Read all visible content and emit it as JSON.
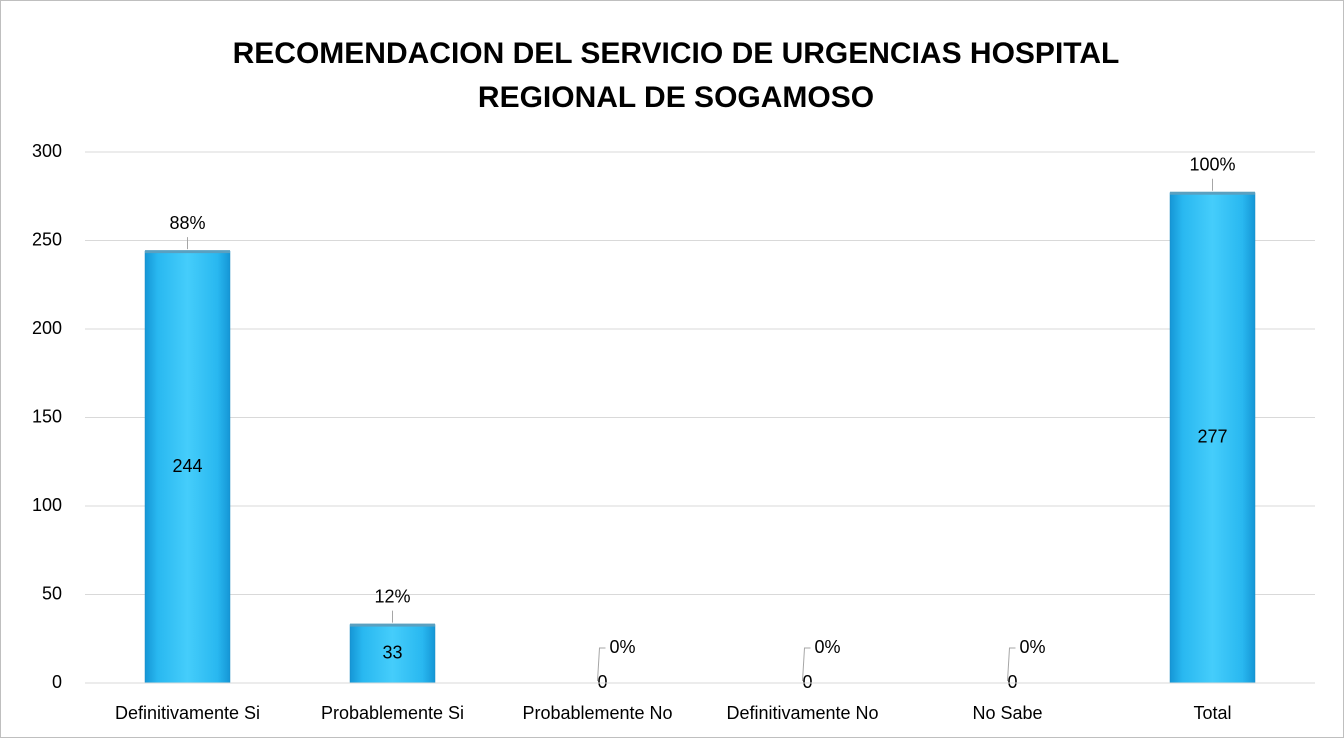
{
  "chart_data": {
    "type": "bar",
    "title": [
      "RECOMENDACION DEL SERVICIO DE URGENCIAS HOSPITAL",
      "REGIONAL DE SOGAMOSO"
    ],
    "categories": [
      "Definitivamente Si",
      "Probablemente Si",
      "Probablemente No",
      "Definitivamente No",
      "No Sabe",
      "Total"
    ],
    "values": [
      244,
      33,
      0,
      0,
      0,
      277
    ],
    "percent_labels": [
      "88%",
      "12%",
      "0%",
      "0%",
      "0%",
      "100%"
    ],
    "color": "#29b8f0",
    "ylim": [
      0,
      300
    ],
    "yticks": [
      0,
      50,
      100,
      150,
      200,
      250,
      300
    ],
    "grid": true
  }
}
